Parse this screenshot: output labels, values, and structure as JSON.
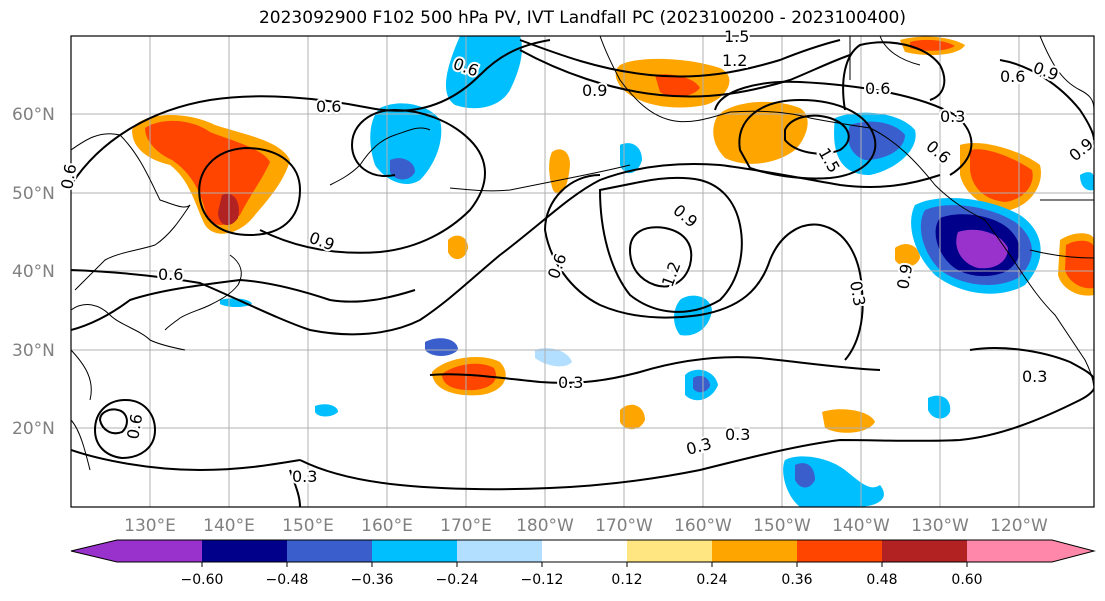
{
  "title": "2023092900 F102 500 hPa PV, IVT Landfall PC (2023100200 - 2023100400)",
  "lat_labels": [
    "60°N",
    "50°N",
    "40°N",
    "30°N",
    "20°N"
  ],
  "lon_labels": [
    "130°E",
    "140°E",
    "150°E",
    "160°E",
    "170°E",
    "180°W",
    "170°W",
    "160°W",
    "150°W",
    "140°W",
    "130°W",
    "120°W"
  ],
  "colorbar": {
    "colors": [
      "#9932cc",
      "#00008b",
      "#3a5fcd",
      "#00bfff",
      "#b2dfff",
      "#ffffff",
      "#ffe680",
      "#ffa500",
      "#ff4500",
      "#b22222",
      "#ff88aa"
    ],
    "tick_labels": [
      "−0.60",
      "−0.48",
      "−0.36",
      "−0.24",
      "−0.12",
      "0.12",
      "0.24",
      "0.36",
      "0.48",
      "0.60"
    ]
  },
  "contour_labels": [
    "0.6",
    "0.6",
    "0.6",
    "0.9",
    "0.9",
    "0.6",
    "0.9",
    "1.2",
    "1.5",
    "0.6",
    "0.9",
    "0.6",
    "0.9",
    "1.2",
    "0.6",
    "0.9",
    "0.3",
    "0.3",
    "0.3",
    "0.3",
    "0.3",
    "0.3",
    "0.6",
    "1.5",
    "0.6",
    "0.3"
  ]
}
